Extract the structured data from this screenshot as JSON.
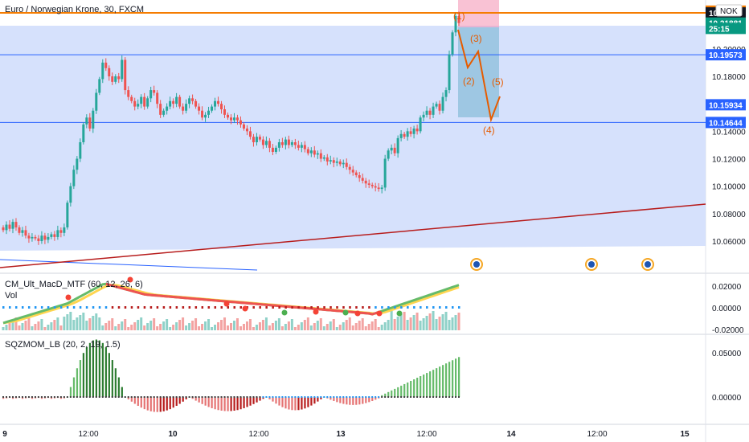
{
  "header": {
    "title": "Euro / Norwegian Krone, 30, FXCM",
    "currency": "NOK"
  },
  "colors": {
    "up": "#26a69a",
    "down": "#ef5350",
    "box": "#cfdcfb",
    "hline": "#2962ff",
    "orange_line": "#f57c00",
    "trend": "#b71c1c",
    "wave": "#e65c00",
    "price_tag": "#2962ff",
    "live_tag": "#089981",
    "orange_tag": "#f57c00"
  },
  "chart_data": [
    {
      "type": "candlestick",
      "pane": "price",
      "title": "Euro / Norwegian Krone, 30, FXCM",
      "ylim": [
        10.053,
        10.2315
      ],
      "y_ticks": [
        "10.06000",
        "10.08000",
        "10.10000",
        "10.12000",
        "10.14000",
        "10.16000",
        "10.18000",
        "10.20000",
        "10.22000"
      ],
      "x_ticks": [
        "9",
        "12:00",
        "10",
        "12:00",
        "13",
        "12:00",
        "14",
        "12:00",
        "15"
      ],
      "price_tags": [
        {
          "label": "10.22751",
          "value": 10.2275,
          "kind": "orange"
        },
        {
          "label": "10.22625",
          "value": 10.2262,
          "kind": "dark"
        },
        {
          "label": "10.21881",
          "value": 10.2188,
          "kind": "live"
        },
        {
          "label": "25:15",
          "value": 10.2149,
          "kind": "live"
        },
        {
          "label": "10.19573",
          "value": 10.1957,
          "kind": "blue"
        },
        {
          "label": "10.15934",
          "value": 10.1593,
          "kind": "blue"
        },
        {
          "label": "10.14644",
          "value": 10.1464,
          "kind": "blue"
        }
      ],
      "horizontal_lines": [
        10.2262,
        10.1957,
        10.1464
      ],
      "wave_labels": [
        "(1)",
        "(2)",
        "(3)",
        "(4)",
        "(5)"
      ],
      "closes": [
        10.068,
        10.072,
        10.069,
        10.074,
        10.07,
        10.066,
        10.068,
        10.064,
        10.062,
        10.063,
        10.062,
        10.06,
        10.064,
        10.061,
        10.063,
        10.065,
        10.063,
        10.068,
        10.066,
        10.07,
        10.088,
        10.1,
        10.112,
        10.12,
        10.132,
        10.145,
        10.15,
        10.142,
        10.155,
        10.168,
        10.178,
        10.19,
        10.186,
        10.18,
        10.176,
        10.18,
        10.178,
        10.192,
        10.17,
        10.165,
        10.162,
        10.158,
        10.16,
        10.165,
        10.158,
        10.164,
        10.17,
        10.168,
        10.16,
        10.152,
        10.155,
        10.158,
        10.162,
        10.16,
        10.165,
        10.158,
        10.155,
        10.16,
        10.164,
        10.162,
        10.158,
        10.155,
        10.15,
        10.152,
        10.155,
        10.158,
        10.162,
        10.16,
        10.156,
        10.152,
        10.15,
        10.148,
        10.15,
        10.148,
        10.145,
        10.142,
        10.14,
        10.136,
        10.132,
        10.136,
        10.134,
        10.13,
        10.133,
        10.128,
        10.125,
        10.128,
        10.132,
        10.13,
        10.134,
        10.13,
        10.132,
        10.13,
        10.128,
        10.13,
        10.127,
        10.124,
        10.126,
        10.123,
        10.124,
        10.12,
        10.121,
        10.118,
        10.119,
        10.117,
        10.118,
        10.116,
        10.117,
        10.114,
        10.112,
        10.11,
        10.108,
        10.106,
        10.104,
        10.102,
        10.101,
        10.1,
        10.099,
        10.098,
        10.099,
        10.12,
        10.126,
        10.128,
        10.124,
        10.135,
        10.138,
        10.136,
        10.14,
        10.138,
        10.142,
        10.14,
        10.15,
        10.152,
        10.155,
        10.152,
        10.158,
        10.16,
        10.155,
        10.165,
        10.17,
        10.196,
        10.212,
        10.224,
        10.2188
      ]
    },
    {
      "type": "line",
      "pane": "indicator",
      "title": "CM_Ult_MacD_MTF (60, 12, 26, 6)",
      "subtitle": "Vol",
      "y_ticks": [
        "0.02000",
        "0.00000",
        "-0.02000"
      ],
      "ylim": [
        -0.021,
        0.023
      ]
    },
    {
      "type": "bar",
      "pane": "indicator",
      "title": "SQZMOM_LB (20, 2, 19, 1.5)",
      "y_ticks": [
        "0.05000",
        "0.00000"
      ],
      "ylim": [
        -0.018,
        0.07
      ]
    }
  ]
}
